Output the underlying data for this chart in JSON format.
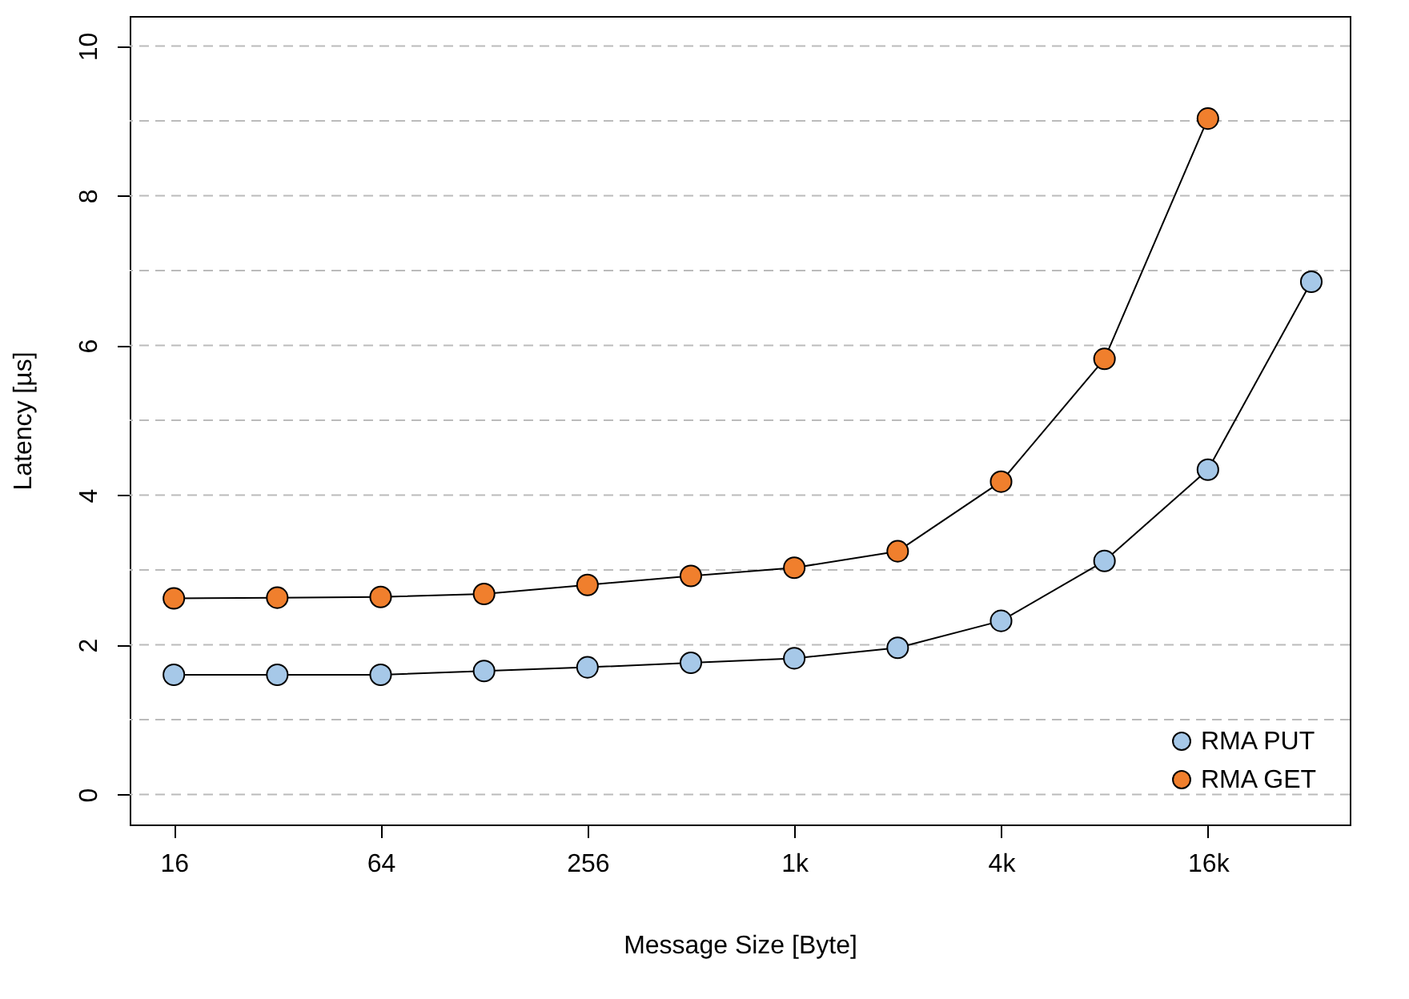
{
  "chart_data": {
    "type": "line",
    "xlabel": "Message Size [Byte]",
    "ylabel": "Latency [µs]",
    "x": [
      16,
      32,
      64,
      128,
      256,
      512,
      1024,
      2048,
      4096,
      8192,
      16384,
      32768
    ],
    "series": [
      {
        "name": "RMA PUT",
        "color": "#a6c8e8",
        "values": [
          1.6,
          1.6,
          1.6,
          1.65,
          1.7,
          1.76,
          1.82,
          1.96,
          2.32,
          3.12,
          4.34,
          6.85
        ]
      },
      {
        "name": "RMA GET",
        "color": "#f07f2d",
        "values": [
          2.62,
          2.63,
          2.64,
          2.68,
          2.8,
          2.92,
          3.03,
          3.25,
          4.18,
          5.82,
          9.03,
          null
        ]
      }
    ],
    "log": "x",
    "xlim": [
      11.9,
      42400
    ],
    "ylim": [
      -0.4,
      10.4
    ],
    "xticks": [
      16,
      64,
      256,
      {
        "value": 1024,
        "label": "1k"
      },
      {
        "value": 4096,
        "label": "4k"
      },
      {
        "value": 16384,
        "label": "16k"
      }
    ],
    "yticks": [
      0,
      {
        "value": 1,
        "label": null
      },
      2,
      {
        "value": 3,
        "label": null
      },
      4,
      {
        "value": 5,
        "label": null
      },
      6,
      {
        "value": 7,
        "label": null
      },
      8,
      {
        "value": 9,
        "label": null
      },
      10
    ],
    "grid": "y",
    "legend": "bottom right",
    "marker": "circle",
    "line_style": "solid"
  }
}
